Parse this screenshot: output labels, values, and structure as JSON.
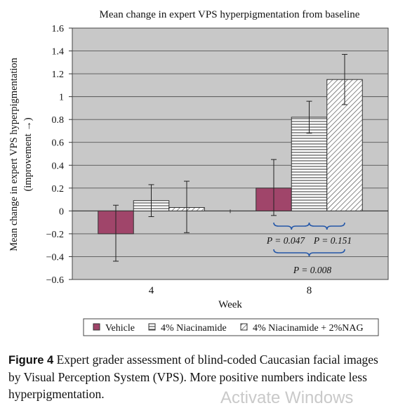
{
  "chart_data": {
    "type": "bar",
    "title": "Mean change in expert VPS hyperpigmentation from baseline",
    "xlabel": "Week",
    "ylabel_line1": "Mean change in expert VPS hyperpigmentation",
    "ylabel_line2": "(improvement →)",
    "ylim": [
      -0.6,
      1.6
    ],
    "yticks": [
      -0.6,
      -0.4,
      -0.2,
      0,
      0.2,
      0.4,
      0.6,
      0.8,
      1.0,
      1.2,
      1.4,
      1.6
    ],
    "ytick_labels": [
      "−0.6",
      "−0.4",
      "−0.2",
      "0",
      "0.2",
      "0.4",
      "0.6",
      "0.8",
      "1",
      "1.2",
      "1.4",
      "1.6"
    ],
    "grid": true,
    "legend_position": "bottom",
    "categories": [
      "4",
      "8"
    ],
    "series": [
      {
        "name": "Vehicle",
        "values": [
          -0.2,
          0.2
        ],
        "error_low": [
          -0.44,
          -0.04
        ],
        "error_high": [
          0.05,
          0.45
        ],
        "color": "#a0456a",
        "pattern": "solid"
      },
      {
        "name": "4% Niacinamide",
        "values": [
          0.09,
          0.82
        ],
        "error_low": [
          -0.05,
          0.68
        ],
        "error_high": [
          0.23,
          0.96
        ],
        "color": "#ffffff",
        "pattern": "horizontal-lines"
      },
      {
        "name": "4% Niacinamide + 2%NAG",
        "values": [
          0.03,
          1.15
        ],
        "error_low": [
          -0.19,
          0.93
        ],
        "error_high": [
          0.26,
          1.37
        ],
        "color": "#ffffff",
        "pattern": "diagonal-lines"
      }
    ],
    "annotations": {
      "p_vehicle_vs_niacinamide": "P = 0.047",
      "p_niacinamide_vs_nag": "P = 0.151",
      "p_vehicle_vs_nag": "P = 0.008"
    }
  },
  "caption": {
    "label": "Figure 4",
    "text": "Expert grader assessment of blind-coded Caucasian facial images by Visual Perception System (VPS). More positive numbers indicate less hyperpigmentation."
  },
  "watermark": "Activate Windows",
  "colors": {
    "plot_background": "#c8c8c8",
    "vehicle": "#a0456a"
  }
}
